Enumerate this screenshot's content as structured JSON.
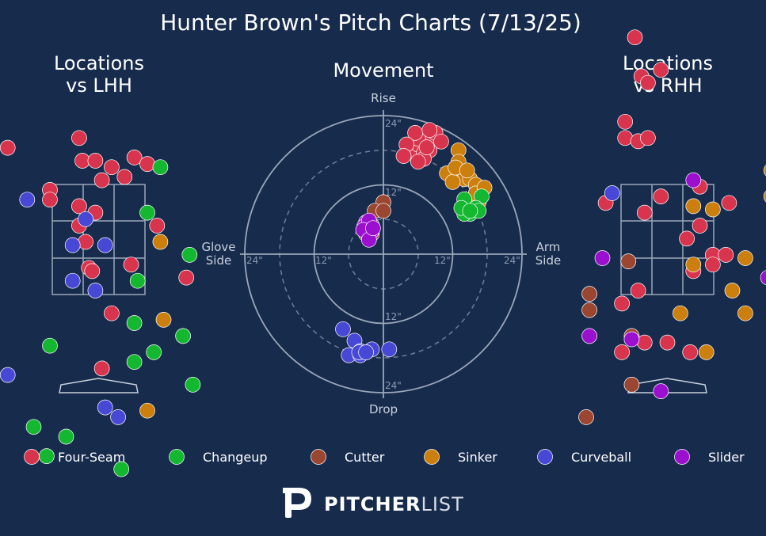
{
  "title": "Hunter Brown's Pitch Charts (7/13/25)",
  "colors": {
    "background": "#172b4d",
    "text": "#ffffff",
    "muted": "#c9d1dc",
    "grid": "#9aa7b8",
    "pitches": {
      "Four-Seam": "#d9344d",
      "Changeup": "#14b830",
      "Cutter": "#9a4630",
      "Sinker": "#cc7f0c",
      "Curveball": "#4848d6",
      "Slider": "#9b0fcf"
    }
  },
  "chart_data": [
    {
      "type": "scatter",
      "title": "Locations vs LHH",
      "series": [
        {
          "name": "Four-Seam",
          "points": [
            [
              -1.4,
              3.7
            ],
            [
              -0.25,
              3.5
            ],
            [
              -0.05,
              3.5
            ],
            [
              -0.3,
              3.85
            ],
            [
              0.2,
              3.4
            ],
            [
              0.55,
              3.55
            ],
            [
              0.75,
              3.45
            ],
            [
              0.4,
              3.25
            ],
            [
              -0.75,
              3.05
            ],
            [
              -0.3,
              2.8
            ],
            [
              -0.2,
              2.25
            ],
            [
              -0.75,
              2.9
            ],
            [
              -0.3,
              2.5
            ],
            [
              -0.15,
              1.85
            ],
            [
              0.5,
              1.9
            ],
            [
              0.9,
              2.5
            ],
            [
              1.35,
              1.7
            ],
            [
              0.05,
              3.2
            ],
            [
              -0.05,
              2.7
            ],
            [
              -0.1,
              1.8
            ],
            [
              0.2,
              1.15
            ],
            [
              0.05,
              0.3
            ]
          ]
        },
        {
          "name": "Changeup",
          "points": [
            [
              0.95,
              3.4
            ],
            [
              0.85,
              0.55
            ],
            [
              0.6,
              1.65
            ],
            [
              0.75,
              2.7
            ],
            [
              -0.75,
              0.65
            ],
            [
              0.55,
              1.0
            ],
            [
              1.3,
              0.8
            ],
            [
              1.4,
              2.05
            ],
            [
              1.45,
              0.05
            ],
            [
              -1.0,
              -0.6
            ],
            [
              -0.8,
              -1.05
            ],
            [
              -0.5,
              -0.75
            ],
            [
              0.55,
              0.4
            ],
            [
              0.35,
              -1.25
            ]
          ]
        },
        {
          "name": "Sinker",
          "points": [
            [
              0.95,
              2.25
            ],
            [
              1.0,
              1.05
            ],
            [
              0.75,
              -0.35
            ]
          ]
        },
        {
          "name": "Curveball",
          "points": [
            [
              -1.7,
              3.65
            ],
            [
              -1.1,
              2.9
            ],
            [
              -0.2,
              2.6
            ],
            [
              0.1,
              2.2
            ],
            [
              -0.4,
              2.2
            ],
            [
              -0.4,
              1.65
            ],
            [
              -0.05,
              1.5
            ],
            [
              -1.4,
              0.2
            ],
            [
              0.1,
              -0.3
            ],
            [
              0.3,
              -0.45
            ]
          ]
        }
      ]
    },
    {
      "type": "scatter",
      "title": "Movement",
      "xlabel": "Arm Side",
      "ylabel": "Rise",
      "xlim": [
        -24,
        24
      ],
      "ylim": [
        -24,
        24
      ],
      "labels": {
        "top": "Rise",
        "bottom": "Drop",
        "left": "Glove Side",
        "right": "Arm Side"
      },
      "ring_labels": [
        "12\"",
        "24\""
      ],
      "series": [
        {
          "name": "Four-Seam",
          "points": [
            [
              5,
              18
            ],
            [
              6,
              19
            ],
            [
              7,
              17.5
            ],
            [
              8,
              18
            ],
            [
              8.5,
              20
            ],
            [
              6,
              20
            ],
            [
              5.5,
              21
            ],
            [
              9,
              21
            ],
            [
              7,
              16.5
            ],
            [
              10,
              19.5
            ],
            [
              4,
              19
            ],
            [
              3.5,
              17
            ],
            [
              6,
              16
            ],
            [
              7.5,
              18.5
            ],
            [
              8,
              21.5
            ]
          ]
        },
        {
          "name": "Sinker",
          "points": [
            [
              13,
              18
            ],
            [
              11,
              14
            ],
            [
              13,
              15
            ],
            [
              14,
              13
            ],
            [
              12,
              12.5
            ],
            [
              15,
              13
            ],
            [
              17,
              11
            ],
            [
              16,
              12
            ],
            [
              16.5,
              9
            ],
            [
              15.5,
              9.5
            ],
            [
              16,
              10.5
            ],
            [
              17.5,
              11.5
            ],
            [
              13,
              16
            ],
            [
              12.5,
              15
            ],
            [
              14.5,
              14.5
            ]
          ]
        },
        {
          "name": "Changeup",
          "points": [
            [
              14,
              9.5
            ],
            [
              17,
              10
            ],
            [
              15,
              7
            ],
            [
              16,
              8
            ],
            [
              14,
              7
            ],
            [
              13.5,
              8
            ],
            [
              16.5,
              7.5
            ],
            [
              15,
              7.5
            ]
          ]
        },
        {
          "name": "Cutter",
          "points": [
            [
              0,
              9
            ],
            [
              -1.5,
              7.5
            ],
            [
              0,
              7.5
            ],
            [
              -3,
              4
            ],
            [
              -2,
              5
            ],
            [
              -2,
              3.5
            ],
            [
              -3,
              3.5
            ]
          ]
        },
        {
          "name": "Slider",
          "points": [
            [
              -3,
              5.5
            ],
            [
              -3.3,
              4.8
            ],
            [
              -2.5,
              5.8
            ],
            [
              -2,
              4
            ],
            [
              -3.5,
              4.2
            ],
            [
              -2.5,
              2.5
            ],
            [
              -1.8,
              4.5
            ]
          ]
        },
        {
          "name": "Curveball",
          "points": [
            [
              -7,
              -13
            ],
            [
              -5,
              -15
            ],
            [
              -6,
              -17.5
            ],
            [
              -4,
              -17.5
            ],
            [
              -2,
              -16.5
            ],
            [
              -4,
              -16.8
            ],
            [
              -4.2,
              -17
            ],
            [
              1,
              -16.5
            ],
            [
              -3,
              -17
            ]
          ]
        }
      ]
    },
    {
      "type": "scatter",
      "title": "Locations vs RHH",
      "series": [
        {
          "name": "Four-Seam",
          "points": [
            [
              -0.5,
              5.4
            ],
            [
              -0.4,
              4.8
            ],
            [
              -0.3,
              4.7
            ],
            [
              -0.1,
              4.9
            ],
            [
              -0.65,
              4.1
            ],
            [
              -0.65,
              3.85
            ],
            [
              -0.45,
              3.8
            ],
            [
              -0.3,
              3.85
            ],
            [
              -0.95,
              2.85
            ],
            [
              -0.35,
              2.7
            ],
            [
              0.5,
              3.1
            ],
            [
              0.95,
              2.85
            ],
            [
              0.5,
              2.5
            ],
            [
              0.3,
              2.3
            ],
            [
              0.7,
              2.05
            ],
            [
              0.9,
              2.05
            ],
            [
              0.4,
              1.8
            ],
            [
              0.7,
              1.9
            ],
            [
              -0.45,
              1.5
            ],
            [
              -0.7,
              1.3
            ],
            [
              -0.35,
              0.7
            ],
            [
              0.0,
              0.7
            ],
            [
              0.35,
              0.55
            ],
            [
              -0.7,
              0.55
            ],
            [
              -0.1,
              2.95
            ]
          ]
        },
        {
          "name": "Sinker",
          "points": [
            [
              1.6,
              3.35
            ],
            [
              0.4,
              2.8
            ],
            [
              0.7,
              2.75
            ],
            [
              1.6,
              2.95
            ],
            [
              0.4,
              1.9
            ],
            [
              1.2,
              2.0
            ],
            [
              1.0,
              1.5
            ],
            [
              1.2,
              1.15
            ],
            [
              2.3,
              2.45
            ],
            [
              0.2,
              1.15
            ],
            [
              0.6,
              0.55
            ]
          ]
        },
        {
          "name": "Cutter",
          "points": [
            [
              -0.6,
              1.95
            ],
            [
              -1.2,
              1.45
            ],
            [
              -1.2,
              1.2
            ],
            [
              -0.55,
              0.8
            ],
            [
              -0.55,
              0.05
            ],
            [
              -1.25,
              -0.45
            ]
          ]
        },
        {
          "name": "Slider",
          "points": [
            [
              0.4,
              3.2
            ],
            [
              -1.0,
              2.0
            ],
            [
              1.55,
              1.7
            ],
            [
              -1.2,
              0.8
            ],
            [
              -0.55,
              0.75
            ],
            [
              -0.1,
              -0.05
            ]
          ]
        },
        {
          "name": "Curveball",
          "points": [
            [
              -0.85,
              3.0
            ]
          ]
        }
      ]
    }
  ],
  "panel_titles": {
    "lhh_1": "Locations",
    "lhh_2": "vs LHH",
    "movement": "Movement",
    "rhh_1": "Locations",
    "rhh_2": "vs RHH"
  },
  "axis_labels": {
    "rise": "Rise",
    "drop": "Drop",
    "glove_1": "Glove",
    "glove_2": "Side",
    "arm_1": "Arm",
    "arm_2": "Side",
    "r12": "12\"",
    "r24": "24\""
  },
  "legend": [
    {
      "name": "Four-Seam",
      "color": "#d9344d"
    },
    {
      "name": "Changeup",
      "color": "#14b830"
    },
    {
      "name": "Cutter",
      "color": "#9a4630"
    },
    {
      "name": "Sinker",
      "color": "#cc7f0c"
    },
    {
      "name": "Curveball",
      "color": "#4848d6"
    },
    {
      "name": "Slider",
      "color": "#9b0fcf"
    }
  ],
  "brand": {
    "bold": "PITCHER",
    "light": "LIST",
    "logo_icon": "pitcherlist-p-logo"
  }
}
